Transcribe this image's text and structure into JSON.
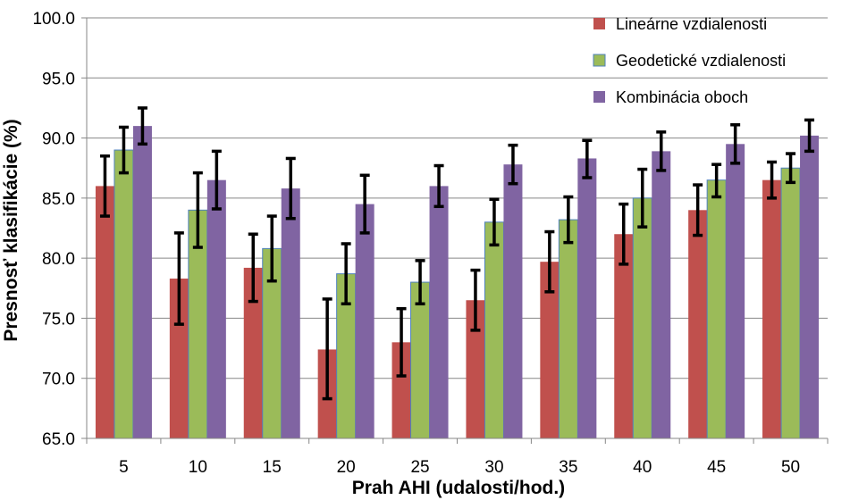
{
  "chart_data": {
    "type": "bar",
    "title": "",
    "xlabel": "Prah AHI (udalosti/hod.)",
    "ylabel": "Presnosť klasifikácie (%)",
    "ylim": [
      65.0,
      100.0
    ],
    "ytick_step": 5.0,
    "ytick_labels": [
      "65.0",
      "70.0",
      "75.0",
      "80.0",
      "85.0",
      "90.0",
      "95.0",
      "100.0"
    ],
    "categories": [
      "5",
      "10",
      "15",
      "20",
      "25",
      "30",
      "35",
      "40",
      "45",
      "50"
    ],
    "grid": true,
    "legend_position": "top-right",
    "series": [
      {
        "name": "Lineárne vzdialenosti",
        "color": "#c0504d",
        "values": [
          86.0,
          78.3,
          79.2,
          72.4,
          73.0,
          76.5,
          79.7,
          82.0,
          84.0,
          86.5
        ],
        "err_low": [
          83.5,
          74.5,
          76.4,
          68.3,
          70.2,
          74.0,
          77.2,
          79.5,
          81.9,
          85.0
        ],
        "err_high": [
          88.5,
          82.1,
          82.0,
          76.6,
          75.8,
          79.0,
          82.2,
          84.5,
          86.1,
          88.0
        ]
      },
      {
        "name": "Geodetické vzdialenosti",
        "color": "#9bbb59",
        "values": [
          89.0,
          84.0,
          80.8,
          78.7,
          78.0,
          83.0,
          83.2,
          85.0,
          86.5,
          87.5
        ],
        "err_low": [
          87.1,
          80.9,
          78.1,
          76.2,
          76.2,
          81.1,
          81.3,
          82.6,
          85.1,
          86.3
        ],
        "err_high": [
          90.9,
          87.1,
          83.5,
          81.2,
          79.8,
          84.9,
          85.1,
          87.4,
          87.8,
          88.7
        ]
      },
      {
        "name": "Kombinácia oboch",
        "color": "#8064a2",
        "values": [
          91.0,
          86.5,
          85.8,
          84.5,
          86.0,
          87.8,
          88.3,
          88.9,
          89.5,
          90.2
        ],
        "err_low": [
          89.5,
          84.1,
          83.3,
          82.1,
          84.3,
          86.2,
          86.7,
          87.3,
          87.9,
          88.9
        ],
        "err_high": [
          92.5,
          88.9,
          88.3,
          86.9,
          87.7,
          89.4,
          89.8,
          90.5,
          91.1,
          91.5
        ]
      }
    ]
  }
}
